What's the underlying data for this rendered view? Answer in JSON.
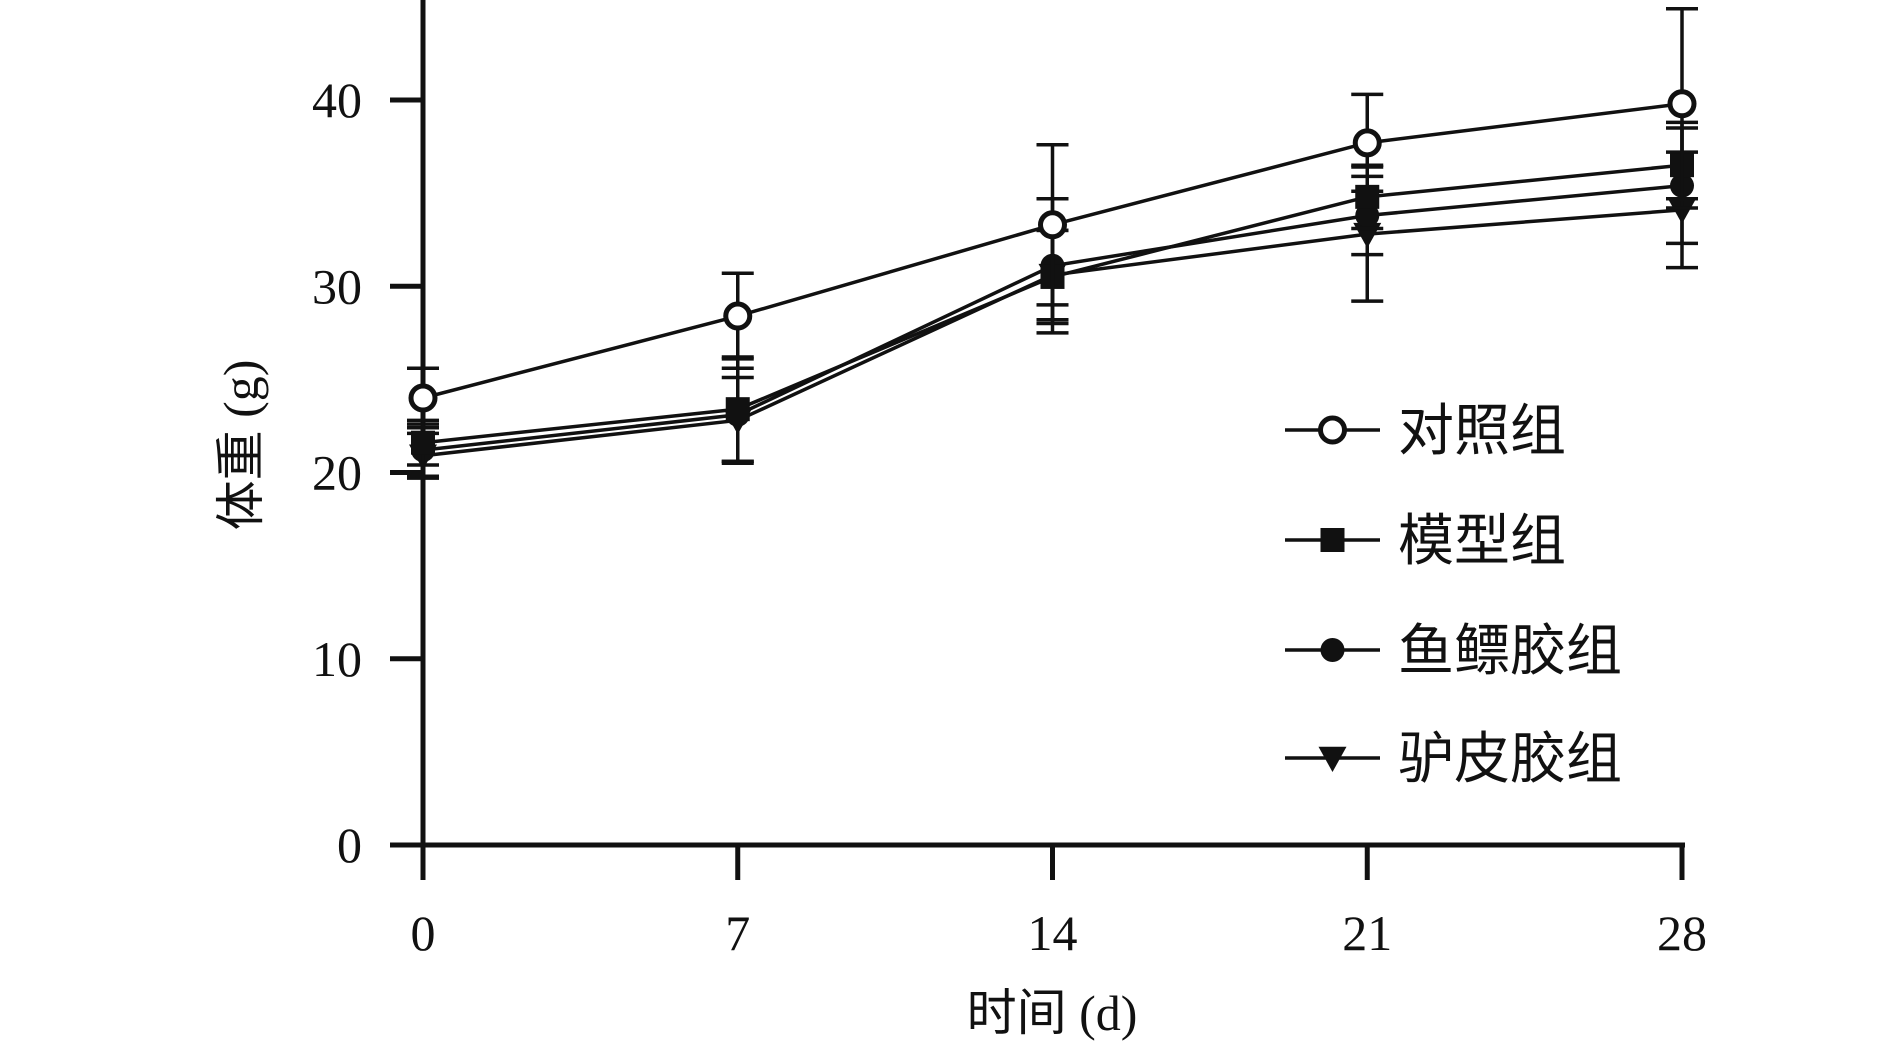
{
  "chart_data": {
    "type": "line",
    "xlabel": "时间 (d)",
    "ylabel": "体重 (g)",
    "x": [
      0,
      7,
      14,
      21,
      28
    ],
    "xlim": [
      0,
      28
    ],
    "ylim": [
      0,
      45
    ],
    "x_ticks": [
      0,
      7,
      14,
      21,
      28
    ],
    "y_ticks": [
      0,
      10,
      20,
      30,
      40
    ],
    "grid": false,
    "legend_position": "center-right",
    "color": "#111111",
    "series": [
      {
        "name": "对照组",
        "marker": "open-circle",
        "values": [
          24.0,
          28.4,
          33.3,
          37.7,
          39.8
        ],
        "errors": [
          1.6,
          2.3,
          4.3,
          2.6,
          5.1
        ]
      },
      {
        "name": "模型组",
        "marker": "filled-square",
        "values": [
          21.6,
          23.4,
          30.5,
          34.8,
          36.5
        ],
        "errors": [
          1.2,
          2.8,
          2.5,
          1.7,
          2.3
        ]
      },
      {
        "name": "鱼鳔胶组",
        "marker": "filled-circle",
        "values": [
          21.2,
          23.1,
          31.1,
          33.8,
          35.4
        ],
        "errors": [
          1.4,
          2.5,
          3.6,
          2.1,
          3.1
        ]
      },
      {
        "name": "驴皮胶组",
        "marker": "filled-triangle-down",
        "values": [
          20.9,
          22.8,
          30.6,
          32.8,
          34.1
        ],
        "errors": [
          1.2,
          2.3,
          2.4,
          3.6,
          3.1
        ]
      }
    ]
  }
}
